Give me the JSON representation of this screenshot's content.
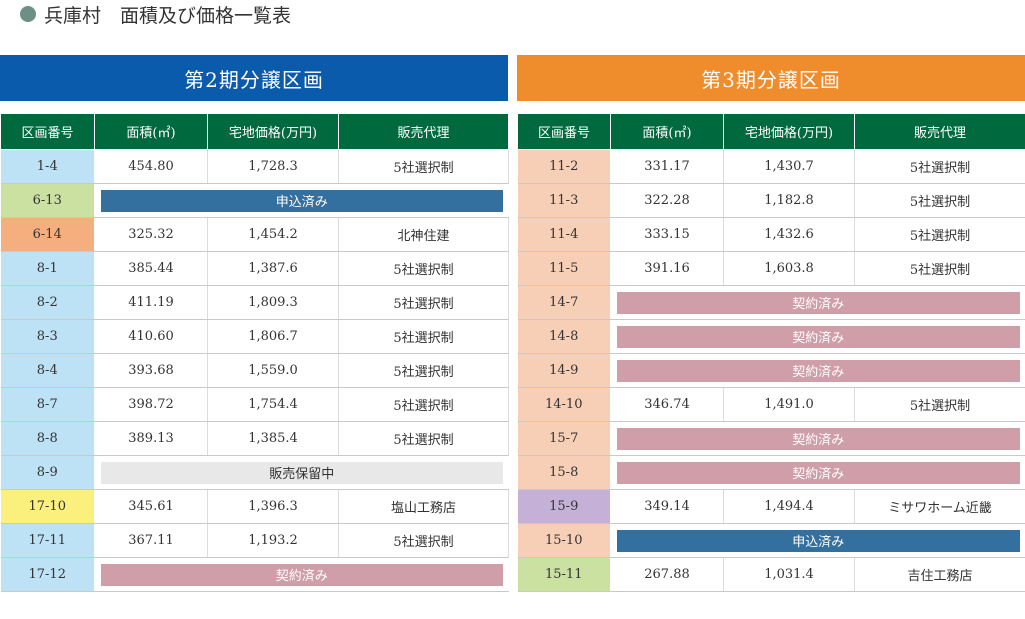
{
  "header": {
    "title": "兵庫村　面積及び価格一覧表"
  },
  "colors": {
    "header_green": "#006a3e",
    "banner_blue": "#0a5bab",
    "banner_orange": "#ef8d2c",
    "applied": "#336f9f",
    "contracted": "#cf9ea9",
    "on_hold": "#e8e8e8",
    "id_blue": "#bde1f5",
    "id_green": "#cbe1a2",
    "id_orange": "#f5ae7e",
    "id_yellow": "#fbf07e",
    "id_peach": "#f7cfb6",
    "id_purple": "#c5b1d7"
  },
  "columns": [
    "区画番号",
    "面積(㎡)",
    "宅地価格(万円)",
    "販売代理"
  ],
  "phase2": {
    "title": "第2期分譲区画",
    "rows": [
      {
        "id": "1-4",
        "color": "#bde1f5",
        "area": "454.80",
        "price": "1,728.3",
        "agent": "5社選択制"
      },
      {
        "id": "6-13",
        "color": "#cbe1a2",
        "status": "申込済み",
        "status_type": "applied"
      },
      {
        "id": "6-14",
        "color": "#f5ae7e",
        "area": "325.32",
        "price": "1,454.2",
        "agent": "北神住建"
      },
      {
        "id": "8-1",
        "color": "#bde1f5",
        "area": "385.44",
        "price": "1,387.6",
        "agent": "5社選択制"
      },
      {
        "id": "8-2",
        "color": "#bde1f5",
        "area": "411.19",
        "price": "1,809.3",
        "agent": "5社選択制"
      },
      {
        "id": "8-3",
        "color": "#bde1f5",
        "area": "410.60",
        "price": "1,806.7",
        "agent": "5社選択制"
      },
      {
        "id": "8-4",
        "color": "#bde1f5",
        "area": "393.68",
        "price": "1,559.0",
        "agent": "5社選択制"
      },
      {
        "id": "8-7",
        "color": "#bde1f5",
        "area": "398.72",
        "price": "1,754.4",
        "agent": "5社選択制"
      },
      {
        "id": "8-8",
        "color": "#bde1f5",
        "area": "389.13",
        "price": "1,385.4",
        "agent": "5社選択制"
      },
      {
        "id": "8-9",
        "color": "#bde1f5",
        "status": "販売保留中",
        "status_type": "hold"
      },
      {
        "id": "17-10",
        "color": "#fbf07e",
        "area": "345.61",
        "price": "1,396.3",
        "agent": "塩山工務店"
      },
      {
        "id": "17-11",
        "color": "#bde1f5",
        "area": "367.11",
        "price": "1,193.2",
        "agent": "5社選択制"
      },
      {
        "id": "17-12",
        "color": "#bde1f5",
        "status": "契約済み",
        "status_type": "contract"
      }
    ]
  },
  "phase3": {
    "title": "第3期分譲区画",
    "rows": [
      {
        "id": "11-2",
        "color": "#f7cfb6",
        "area": "331.17",
        "price": "1,430.7",
        "agent": "5社選択制"
      },
      {
        "id": "11-3",
        "color": "#f7cfb6",
        "area": "322.28",
        "price": "1,182.8",
        "agent": "5社選択制"
      },
      {
        "id": "11-4",
        "color": "#f7cfb6",
        "area": "333.15",
        "price": "1,432.6",
        "agent": "5社選択制"
      },
      {
        "id": "11-5",
        "color": "#f7cfb6",
        "area": "391.16",
        "price": "1,603.8",
        "agent": "5社選択制"
      },
      {
        "id": "14-7",
        "color": "#f7cfb6",
        "status": "契約済み",
        "status_type": "contract"
      },
      {
        "id": "14-8",
        "color": "#f7cfb6",
        "status": "契約済み",
        "status_type": "contract"
      },
      {
        "id": "14-9",
        "color": "#f7cfb6",
        "status": "契約済み",
        "status_type": "contract"
      },
      {
        "id": "14-10",
        "color": "#f7cfb6",
        "area": "346.74",
        "price": "1,491.0",
        "agent": "5社選択制"
      },
      {
        "id": "15-7",
        "color": "#f7cfb6",
        "status": "契約済み",
        "status_type": "contract"
      },
      {
        "id": "15-8",
        "color": "#f7cfb6",
        "status": "契約済み",
        "status_type": "contract"
      },
      {
        "id": "15-9",
        "color": "#c5b1d7",
        "area": "349.14",
        "price": "1,494.4",
        "agent": "ミサワホーム近畿"
      },
      {
        "id": "15-10",
        "color": "#f7cfb6",
        "status": "申込済み",
        "status_type": "applied"
      },
      {
        "id": "15-11",
        "color": "#cbe1a2",
        "area": "267.88",
        "price": "1,031.4",
        "agent": "吉住工務店"
      }
    ]
  }
}
